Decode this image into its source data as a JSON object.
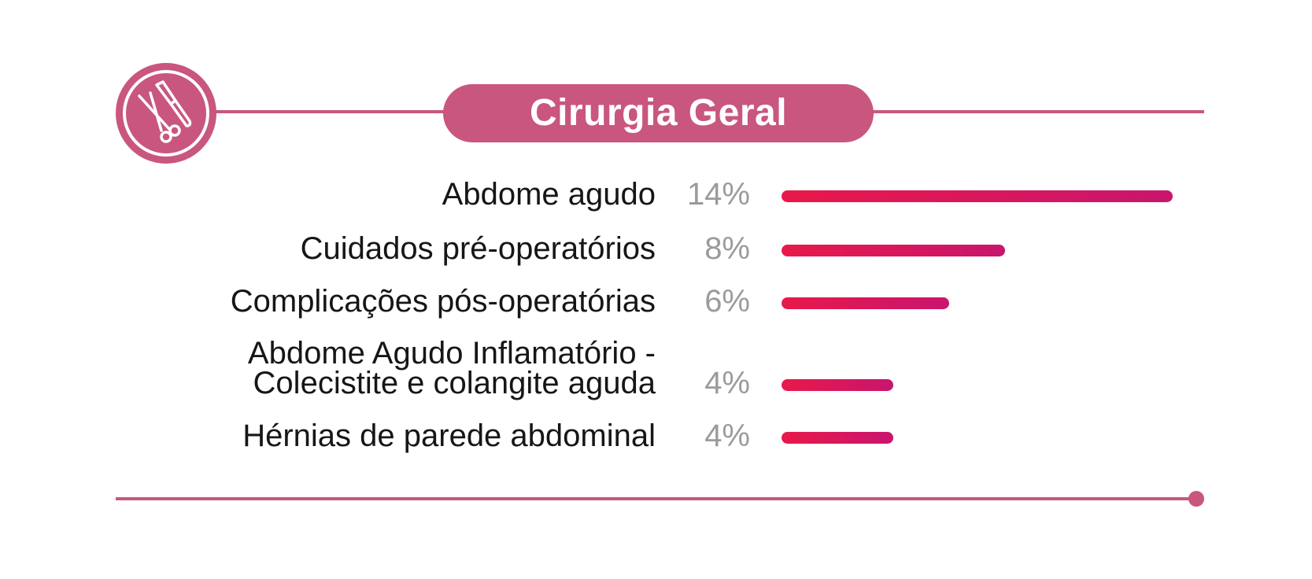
{
  "title": "Cirurgia Geral",
  "icon": "scalpel-scissors-icon",
  "colors": {
    "accent": "#c9567f",
    "bar_start": "#e8194a",
    "bar_end": "#c9156e",
    "percent_text": "#9b9b9b"
  },
  "chart_data": {
    "type": "bar",
    "orientation": "horizontal",
    "title": "Cirurgia Geral",
    "categories": [
      "Abdome agudo",
      "Cuidados pré-operatórios",
      "Complicações pós-operatórias",
      "Abdome Agudo Inflamatório - Colecistite e colangite aguda",
      "Hérnias de parede abdominal"
    ],
    "category_lines": [
      [
        "Abdome agudo"
      ],
      [
        "Cuidados pré-operatórios"
      ],
      [
        "Complicações pós-operatórias"
      ],
      [
        "Abdome Agudo Inflamatório -",
        "Colecistite e colangite aguda"
      ],
      [
        "Hérnias de parede abdominal"
      ]
    ],
    "values": [
      14,
      8,
      6,
      4,
      4
    ],
    "value_labels": [
      "14%",
      "8%",
      "6%",
      "4%",
      "4%"
    ],
    "unit": "%",
    "xlim": [
      0,
      14
    ]
  }
}
